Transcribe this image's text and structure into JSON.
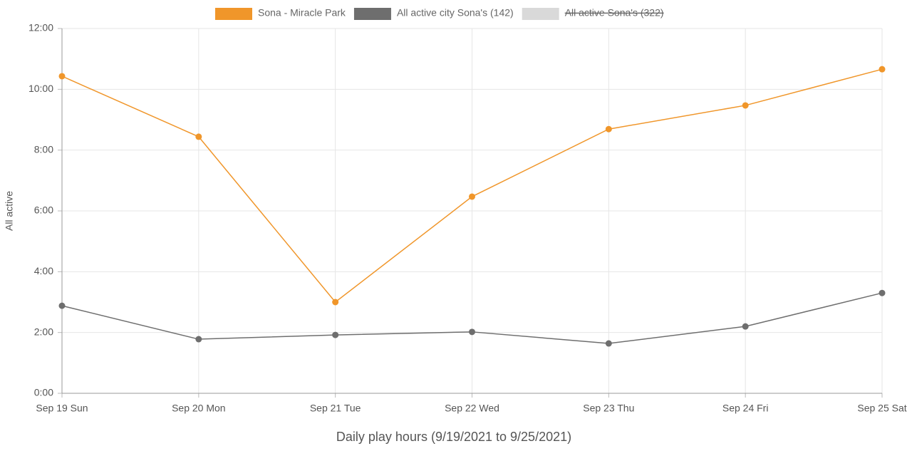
{
  "chart_data": {
    "type": "line",
    "x_label": "Daily play hours (9/19/2021 to 9/25/2021)",
    "y_label": "All active",
    "categories": [
      "Sep 19 Sun",
      "Sep 20 Mon",
      "Sep 21 Tue",
      "Sep 22 Wed",
      "Sep 23 Thu",
      "Sep 24 Fri",
      "Sep 25 Sat"
    ],
    "series": [
      {
        "name": "Sona - Miracle Park",
        "color": "#f0962a",
        "values": [
          10.43,
          8.44,
          3.0,
          6.47,
          8.69,
          9.47,
          10.66
        ]
      },
      {
        "name": "All active city Sona's (142)",
        "color": "#6e6e6e",
        "values": [
          2.88,
          1.78,
          1.92,
          2.02,
          1.64,
          2.2,
          3.3
        ]
      },
      {
        "name": "All active Sona's (322)",
        "color": "#d9d9d9",
        "hidden": true,
        "values": [
          null,
          null,
          null,
          null,
          null,
          null,
          null
        ]
      }
    ],
    "ylim": [
      0,
      12
    ],
    "yticks": [
      {
        "value": 0,
        "label": "0:00"
      },
      {
        "value": 2,
        "label": "2:00"
      },
      {
        "value": 4,
        "label": "4:00"
      },
      {
        "value": 6,
        "label": "6:00"
      },
      {
        "value": 8,
        "label": "8:00"
      },
      {
        "value": 10,
        "label": "10:00"
      },
      {
        "value": 12,
        "label": "12:00"
      }
    ],
    "grid": true,
    "legend": "top"
  }
}
